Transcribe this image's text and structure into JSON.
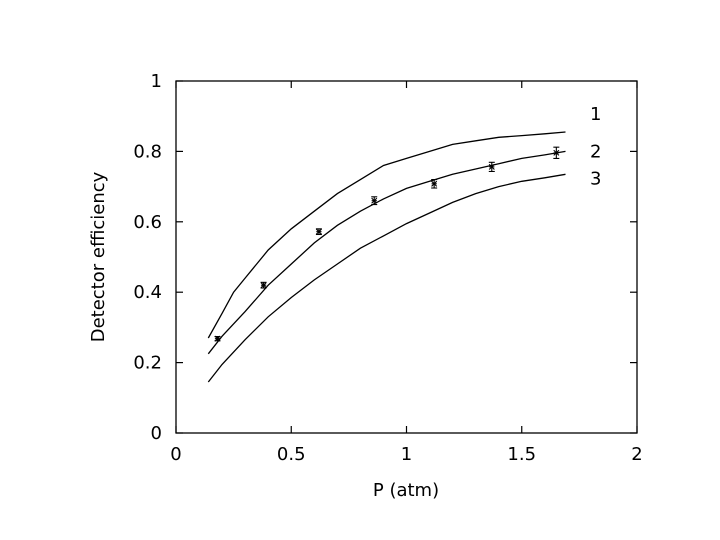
{
  "chart_data": {
    "type": "line",
    "title": "",
    "xlabel": "P (atm)",
    "ylabel": "Detector efficiency",
    "xlim": [
      0,
      2
    ],
    "ylim": [
      0,
      1
    ],
    "xticks": [
      0,
      0.5,
      1,
      1.5,
      2
    ],
    "yticks": [
      0,
      0.2,
      0.4,
      0.6,
      0.8,
      1
    ],
    "xtick_labels": [
      "0",
      "0.5",
      "1",
      "1.5",
      "2"
    ],
    "ytick_labels": [
      "0",
      "0.2",
      "0.4",
      "0.6",
      "0.8",
      "1"
    ],
    "grid": false,
    "series": [
      {
        "name": "1",
        "x": [
          0.14,
          0.2,
          0.25,
          0.3,
          0.35,
          0.4,
          0.5,
          0.6,
          0.7,
          0.8,
          0.9,
          1.0,
          1.1,
          1.2,
          1.3,
          1.4,
          1.5,
          1.6,
          1.69
        ],
        "y": [
          0.27,
          0.34,
          0.4,
          0.44,
          0.48,
          0.52,
          0.58,
          0.63,
          0.68,
          0.72,
          0.76,
          0.78,
          0.8,
          0.82,
          0.83,
          0.84,
          0.845,
          0.85,
          0.855
        ]
      },
      {
        "name": "2",
        "x": [
          0.14,
          0.2,
          0.3,
          0.4,
          0.5,
          0.6,
          0.7,
          0.8,
          0.9,
          1.0,
          1.1,
          1.2,
          1.3,
          1.4,
          1.5,
          1.6,
          1.69
        ],
        "y": [
          0.225,
          0.275,
          0.345,
          0.42,
          0.48,
          0.54,
          0.59,
          0.63,
          0.665,
          0.695,
          0.715,
          0.735,
          0.75,
          0.765,
          0.78,
          0.79,
          0.8
        ]
      },
      {
        "name": "3",
        "x": [
          0.14,
          0.2,
          0.3,
          0.4,
          0.5,
          0.6,
          0.7,
          0.8,
          0.9,
          1.0,
          1.1,
          1.2,
          1.3,
          1.4,
          1.5,
          1.6,
          1.69
        ],
        "y": [
          0.145,
          0.195,
          0.265,
          0.33,
          0.385,
          0.435,
          0.48,
          0.525,
          0.56,
          0.595,
          0.625,
          0.655,
          0.68,
          0.7,
          0.715,
          0.725,
          0.735
        ]
      }
    ],
    "points": {
      "x": [
        0.18,
        0.38,
        0.62,
        0.86,
        1.12,
        1.37,
        1.65
      ],
      "y": [
        0.268,
        0.42,
        0.572,
        0.66,
        0.708,
        0.756,
        0.796
      ],
      "err": [
        0.006,
        0.008,
        0.008,
        0.011,
        0.012,
        0.013,
        0.016
      ]
    }
  }
}
